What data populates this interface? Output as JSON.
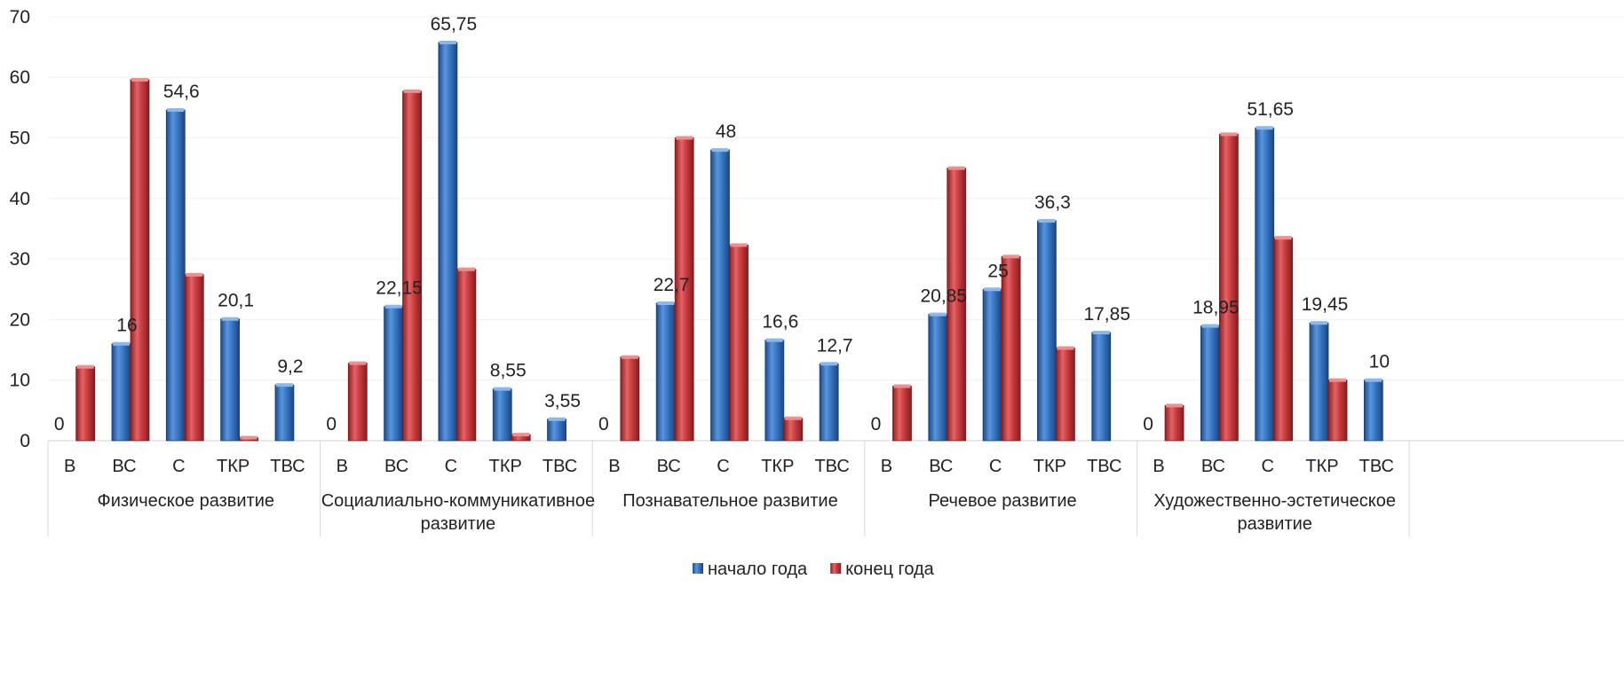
{
  "chart_data": {
    "type": "bar",
    "title": "",
    "xlabel": "",
    "ylabel": "",
    "ylim": [
      0,
      70
    ],
    "yticks": [
      "0",
      "10",
      "20",
      "30",
      "40",
      "50",
      "60",
      "70"
    ],
    "grid": false,
    "legend_position": "bottom",
    "groups": [
      {
        "name": "Физическое развитие",
        "categories": [
          "В",
          "ВС",
          "С",
          "ТКР",
          "ТВС"
        ],
        "start": [
          0,
          16,
          54.6,
          20.1,
          9.2
        ],
        "end": [
          12.2,
          59.6,
          27.4,
          0.5,
          0
        ],
        "start_labels": [
          "0",
          "16",
          "54,6",
          "20,1",
          "9,2"
        ]
      },
      {
        "name": "Социалиально-коммуникативное развитие",
        "categories": [
          "В",
          "ВС",
          "С",
          "ТКР",
          "ТВС"
        ],
        "start": [
          0,
          22.15,
          65.75,
          8.55,
          3.55
        ],
        "end": [
          12.8,
          57.7,
          28.3,
          1.0,
          0
        ],
        "start_labels": [
          "0",
          "22,15",
          "65,75",
          "8,55",
          "3,55"
        ]
      },
      {
        "name": "Познавательное развитие",
        "categories": [
          "В",
          "ВС",
          "С",
          "ТКР",
          "ТВС"
        ],
        "start": [
          0,
          22.7,
          48,
          16.6,
          12.7
        ],
        "end": [
          13.8,
          50.0,
          32.3,
          3.7,
          0
        ],
        "start_labels": [
          "0",
          "22,7",
          "48",
          "16,6",
          "12,7"
        ]
      },
      {
        "name": "Речевое развитие",
        "categories": [
          "В",
          "ВС",
          "С",
          "ТКР",
          "ТВС"
        ],
        "start": [
          0,
          20.85,
          25,
          36.3,
          17.85
        ],
        "end": [
          9.0,
          45.0,
          30.4,
          15.3,
          0
        ],
        "start_labels": [
          "0",
          "20,85",
          "25",
          "36,3",
          "17,85"
        ]
      },
      {
        "name": "Художественно-эстетическое развитие",
        "categories": [
          "В",
          "ВС",
          "С",
          "ТКР",
          "ТВС"
        ],
        "start": [
          0,
          18.95,
          51.65,
          19.45,
          10
        ],
        "end": [
          5.8,
          50.6,
          33.5,
          10.0,
          0
        ],
        "start_labels": [
          "0",
          "18,95",
          "51,65",
          "19,45",
          "10"
        ]
      }
    ],
    "series": [
      {
        "name": "начало года",
        "color": "#2f6db5"
      },
      {
        "name": "конец года",
        "color": "#c8383a"
      }
    ]
  }
}
